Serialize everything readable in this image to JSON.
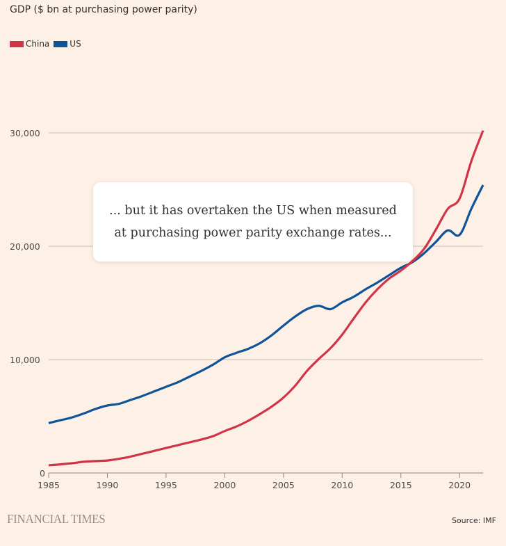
{
  "header": {
    "title": "GDP ($ bn at purchasing power parity)"
  },
  "legend": [
    {
      "label": "China",
      "color": "#d13447"
    },
    {
      "label": "US",
      "color": "#0f5499"
    }
  ],
  "annotation": {
    "text": "... but it has overtaken the US when measured at purchasing power parity exchange rates..."
  },
  "footer": {
    "brand": "FINANCIAL TIMES",
    "source": "Source: IMF"
  },
  "colors": {
    "background": "#fdf0e6",
    "gridline": "#cbbcb1",
    "axis": "#8d8680",
    "china": "#d13447",
    "us": "#0f5499"
  },
  "chart_data": {
    "type": "line",
    "title": "GDP ($ bn at purchasing power parity)",
    "xlabel": "",
    "ylabel": "",
    "xlim": [
      1985,
      2022
    ],
    "ylim": [
      0,
      30000
    ],
    "grid": true,
    "legend_position": "top-left",
    "x_ticks": [
      1985,
      1990,
      1995,
      2000,
      2005,
      2010,
      2015,
      2020
    ],
    "y_ticks": [
      0,
      10000,
      20000,
      30000
    ],
    "y_tick_labels": [
      "0",
      "10,000",
      "20,000",
      "30,000"
    ],
    "x": [
      1985,
      1986,
      1987,
      1988,
      1989,
      1990,
      1991,
      1992,
      1993,
      1994,
      1995,
      1996,
      1997,
      1998,
      1999,
      2000,
      2001,
      2002,
      2003,
      2004,
      2005,
      2006,
      2007,
      2008,
      2009,
      2010,
      2011,
      2012,
      2013,
      2014,
      2015,
      2016,
      2017,
      2018,
      2019,
      2020,
      2021,
      2022
    ],
    "series": [
      {
        "name": "China",
        "color": "#d13447",
        "values": [
          680,
          760,
          860,
          990,
          1050,
          1100,
          1250,
          1450,
          1700,
          1950,
          2200,
          2450,
          2700,
          2950,
          3250,
          3700,
          4100,
          4600,
          5200,
          5850,
          6650,
          7700,
          9000,
          10050,
          11000,
          12200,
          13650,
          15050,
          16200,
          17150,
          17850,
          18700,
          19800,
          21500,
          23300,
          24200,
          27500,
          30200
        ]
      },
      {
        "name": "US",
        "color": "#0f5499",
        "values": [
          4400,
          4650,
          4900,
          5250,
          5650,
          5950,
          6100,
          6450,
          6800,
          7200,
          7600,
          8000,
          8500,
          9000,
          9550,
          10200,
          10600,
          10950,
          11450,
          12150,
          13000,
          13800,
          14450,
          14750,
          14450,
          15050,
          15550,
          16200,
          16800,
          17450,
          18100,
          18600,
          19400,
          20400,
          21400,
          21000,
          23300,
          25400
        ]
      }
    ]
  }
}
